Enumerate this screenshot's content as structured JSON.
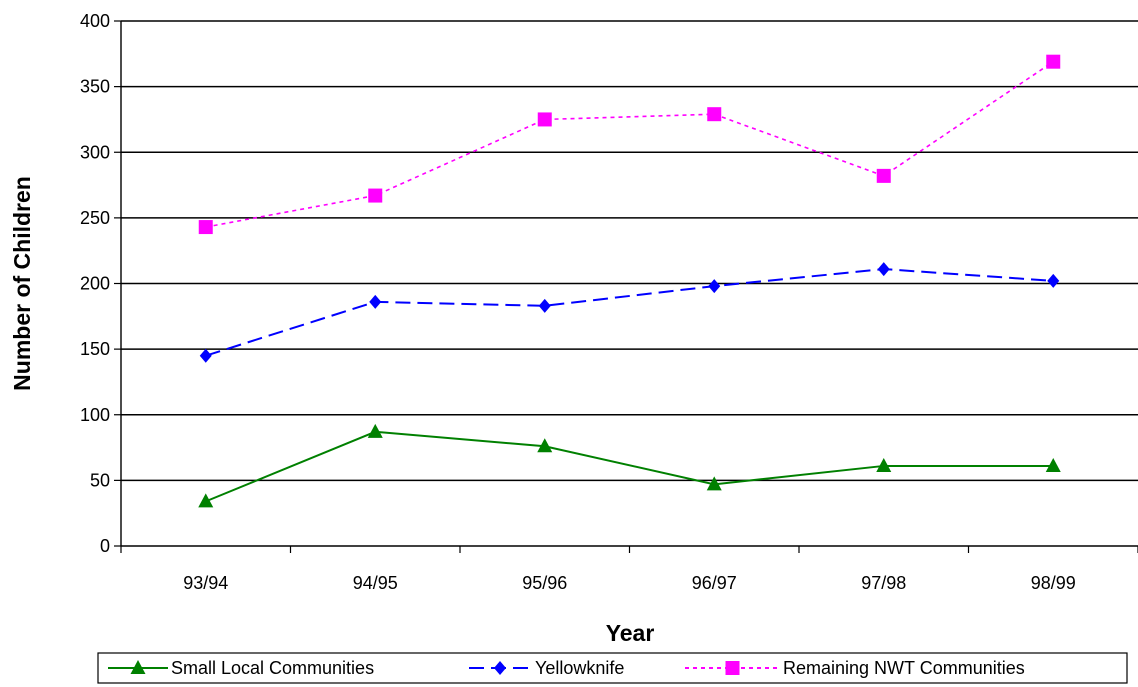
{
  "chart_data": {
    "type": "line",
    "title": "",
    "xlabel": "Year",
    "ylabel": "Number of Children",
    "categories": [
      "93/94",
      "94/95",
      "95/96",
      "96/97",
      "97/98",
      "98/99"
    ],
    "ylim": [
      0,
      400
    ],
    "yticks": [
      0,
      50,
      100,
      150,
      200,
      250,
      300,
      350,
      400
    ],
    "grid": true,
    "legend_position": "bottom",
    "series": [
      {
        "name": "Small Local Communities",
        "values": [
          34,
          87,
          76,
          47,
          61,
          61
        ],
        "color": "#008000",
        "marker": "triangle",
        "line_style": "solid"
      },
      {
        "name": "Yellowknife",
        "values": [
          145,
          186,
          183,
          198,
          211,
          202
        ],
        "color": "#0000ff",
        "marker": "diamond",
        "line_style": "dashed"
      },
      {
        "name": "Remaining NWT Communities",
        "values": [
          243,
          267,
          325,
          329,
          282,
          369
        ],
        "color": "#ff00ff",
        "marker": "square",
        "line_style": "dotted"
      }
    ]
  }
}
